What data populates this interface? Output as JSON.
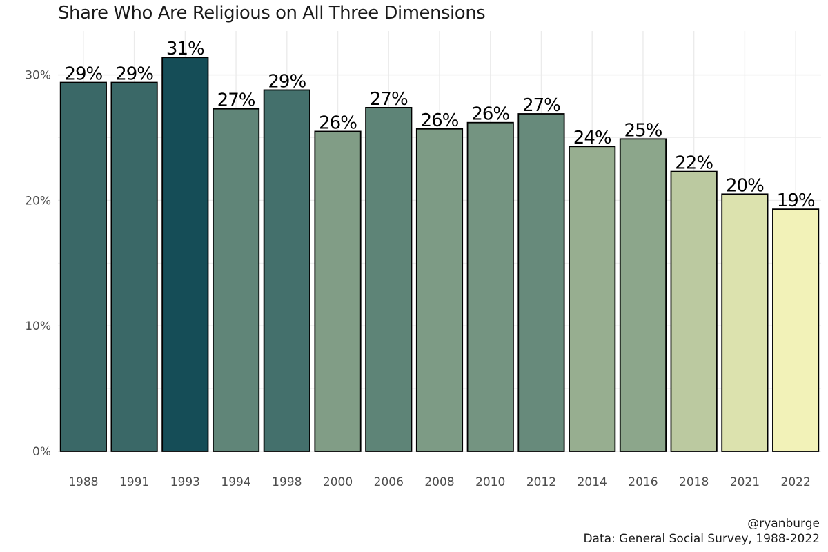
{
  "chart_data": {
    "type": "bar",
    "title": "Share Who Are Religious on All Three Dimensions",
    "xlabel": "",
    "ylabel": "",
    "categories": [
      "1988",
      "1991",
      "1993",
      "1994",
      "1998",
      "2000",
      "2006",
      "2008",
      "2010",
      "2012",
      "2014",
      "2016",
      "2018",
      "2021",
      "2022"
    ],
    "values": [
      0.294,
      0.294,
      0.314,
      0.273,
      0.288,
      0.255,
      0.274,
      0.257,
      0.262,
      0.269,
      0.243,
      0.249,
      0.223,
      0.205,
      0.193
    ],
    "labels": [
      "29%",
      "29%",
      "31%",
      "27%",
      "29%",
      "26%",
      "27%",
      "26%",
      "26%",
      "27%",
      "24%",
      "25%",
      "22%",
      "20%",
      "19%"
    ],
    "ylim": [
      0,
      0.335
    ],
    "yticks": [
      0,
      0.1,
      0.2,
      0.3
    ],
    "ytick_labels": [
      "0%",
      "10%",
      "20%",
      "30%"
    ],
    "grid": true,
    "legend": "none",
    "colors": {
      "low": "#F2F2B8",
      "high": "#154D57",
      "bar_outline": "#000000",
      "grid": "#EBEBEB"
    }
  },
  "caption": {
    "line1": "@ryanburge",
    "line2": "Data: General Social Survey, 1988-2022"
  }
}
